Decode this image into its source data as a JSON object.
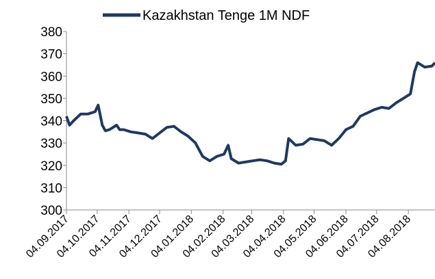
{
  "chart_data": {
    "type": "line",
    "series": [
      {
        "name": "Kazakhstan Tenge 1M NDF",
        "color": "#1f3a5f",
        "x": [
          "04.09.2017",
          "07.09.2017",
          "11.09.2017",
          "18.09.2017",
          "25.09.2017",
          "02.10.2017",
          "05.10.2017",
          "09.10.2017",
          "12.10.2017",
          "16.10.2017",
          "23.10.2017",
          "26.10.2017",
          "30.10.2017",
          "06.11.2017",
          "13.11.2017",
          "20.11.2017",
          "27.11.2017",
          "04.12.2017",
          "11.12.2017",
          "18.12.2017",
          "25.12.2017",
          "01.01.2018",
          "08.01.2018",
          "15.01.2018",
          "22.01.2018",
          "29.01.2018",
          "05.02.2018",
          "09.02.2018",
          "12.02.2018",
          "19.02.2018",
          "26.02.2018",
          "05.03.2018",
          "12.03.2018",
          "19.03.2018",
          "26.03.2018",
          "02.04.2018",
          "06.04.2018",
          "09.04.2018",
          "16.04.2018",
          "23.04.2018",
          "30.04.2018",
          "07.05.2018",
          "14.05.2018",
          "21.05.2018",
          "28.05.2018",
          "04.06.2018",
          "11.06.2018",
          "18.06.2018",
          "25.06.2018",
          "02.07.2018",
          "09.07.2018",
          "16.07.2018",
          "23.07.2018",
          "30.07.2018",
          "06.08.2018",
          "10.08.2018",
          "13.08.2018",
          "20.08.2018",
          "27.08.2018",
          "30.08.2018"
        ],
        "values": [
          342,
          338,
          340,
          343,
          343,
          344,
          347,
          338,
          335.5,
          336,
          338,
          336,
          336,
          335,
          334.5,
          334,
          332,
          334.5,
          337,
          337.5,
          335,
          333,
          330,
          324,
          322,
          324,
          325,
          329,
          323,
          321,
          321.5,
          322,
          322.5,
          322,
          321,
          320.5,
          322,
          332,
          329,
          329.5,
          332,
          331.5,
          331,
          329,
          332,
          336,
          337.5,
          342,
          343.5,
          345,
          346,
          345.5,
          348,
          350,
          352,
          362,
          366,
          364,
          364.5,
          366
        ]
      }
    ],
    "xlim": [
      "04.09.2017",
      "30.08.2018"
    ],
    "xticks": [
      "04.09.2017",
      "04.10.2017",
      "04.11.2017",
      "04.12.2017",
      "04.01.2018",
      "04.02.2018",
      "04.03.2018",
      "04.04.2018",
      "04.05.2018",
      "04.06.2018",
      "04.07.2018",
      "04.08.2018"
    ],
    "ylim": [
      300,
      380
    ],
    "yticks": [
      300,
      310,
      320,
      330,
      340,
      350,
      360,
      370,
      380
    ],
    "legend": "top"
  }
}
